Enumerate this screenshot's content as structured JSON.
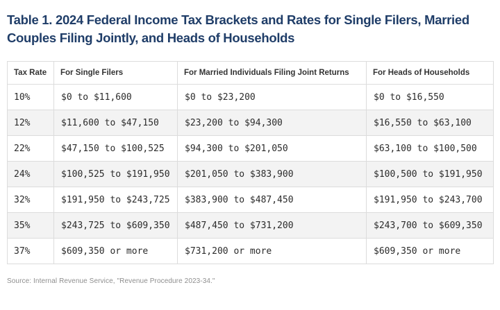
{
  "page": {
    "background": "#ffffff"
  },
  "title": "Table 1. 2024 Federal Income Tax Brackets and Rates for Single Filers, Married Couples Filing Jointly, and Heads of Households",
  "source_note": "Source: Internal Revenue Service, \"Revenue Procedure 2023-34.\"",
  "colors": {
    "title_text": "#1f3d68",
    "header_text": "#333333",
    "cell_text": "#2b2b2b",
    "border": "#dcdcdc",
    "row_stripe": "#f3f3f3",
    "source_text": "#8e8e8e"
  },
  "chart_data": {
    "type": "table",
    "title": "Table 1. 2024 Federal Income Tax Brackets and Rates for Single Filers, Married Couples Filing Jointly, and Heads of Households",
    "columns": [
      "Tax Rate",
      "For Single Filers",
      "For Married Individuals Filing Joint Returns",
      "For Heads of Households"
    ],
    "rows": [
      [
        "10%",
        "$0 to $11,600",
        "$0 to $23,200",
        "$0 to $16,550"
      ],
      [
        "12%",
        "$11,600 to $47,150",
        "$23,200 to $94,300",
        "$16,550 to $63,100"
      ],
      [
        "22%",
        "$47,150 to $100,525",
        "$94,300 to $201,050",
        "$63,100 to $100,500"
      ],
      [
        "24%",
        "$100,525 to $191,950",
        "$201,050 to $383,900",
        "$100,500 to $191,950"
      ],
      [
        "32%",
        "$191,950 to $243,725",
        "$383,900 to $487,450",
        "$191,950 to $243,700"
      ],
      [
        "35%",
        "$243,725 to $609,350",
        "$487,450 to $731,200",
        "$243,700 to $609,350"
      ],
      [
        "37%",
        "$609,350 or more",
        "$731,200 or more",
        "$609,350 or more"
      ]
    ],
    "source": "Source: Internal Revenue Service, \"Revenue Procedure 2023-34.\"",
    "layout": {
      "striped_row_indices": [
        1,
        3,
        5
      ],
      "grid": true,
      "legend": false
    }
  }
}
